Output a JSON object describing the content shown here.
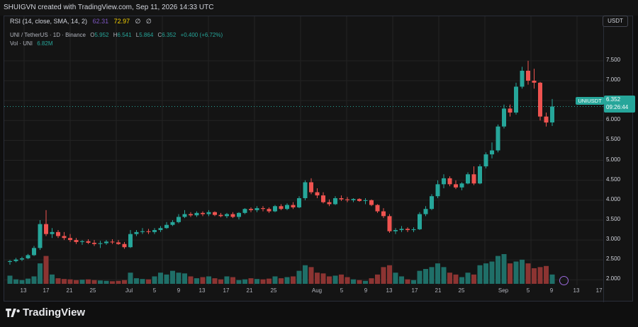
{
  "header": {
    "creator_line": "SHUIGVN created with TradingView.com, Sep 11, 2026 14:33 UTC"
  },
  "rsi": {
    "label": "RSI (14, close, SMA, 14, 2)",
    "value1": "62.31",
    "value2": "72.97",
    "na1": "∅",
    "na2": "∅"
  },
  "symbol_legend": {
    "title": "UNI / TetherUS · 1D · Binance",
    "o_label": "O",
    "open": "5.952",
    "h_label": "H",
    "high": "6.541",
    "l_label": "L",
    "low": "5.864",
    "c_label": "C",
    "close": "6.352",
    "change": "+0.400 (+6.72%)"
  },
  "volume_legend": {
    "label": "Vol · UNI",
    "value": "6.82M"
  },
  "price_axis": {
    "currency_button": "USDT",
    "ticks": [
      "7.500",
      "7.000",
      "6.500",
      "6.000",
      "5.500",
      "5.000",
      "4.500",
      "4.000",
      "3.500",
      "3.000",
      "2.500",
      "2.000"
    ],
    "last_price_symbol": "UNIUSDT",
    "last_price": "6.352",
    "countdown": "09:26:44"
  },
  "date_axis": {
    "labels": [
      "13",
      "17",
      "21",
      "25",
      "Jul",
      "5",
      "9",
      "13",
      "17",
      "21",
      "25",
      "Aug",
      "5",
      "9",
      "13",
      "17",
      "21",
      "25",
      "Sep",
      "5",
      "9",
      "13",
      "17"
    ]
  },
  "brand": {
    "logo_text": "TradingView"
  },
  "colors": {
    "up": "#26a69a",
    "down": "#ef5350",
    "vol_up": "#1f6f68",
    "vol_down": "#8c3432",
    "grid": "#232323"
  },
  "chart_data": {
    "type": "candlestick",
    "y_range": [
      1.9,
      7.8
    ],
    "candles": [
      {
        "date": "Jun 11",
        "o": 2.45,
        "h": 2.5,
        "l": 2.38,
        "c": 2.47,
        "v": 0.22
      },
      {
        "date": "Jun 12",
        "o": 2.47,
        "h": 2.55,
        "l": 2.44,
        "c": 2.51,
        "v": 0.12
      },
      {
        "date": "Jun 13",
        "o": 2.51,
        "h": 2.58,
        "l": 2.47,
        "c": 2.54,
        "v": 0.1
      },
      {
        "date": "Jun 14",
        "o": 2.54,
        "h": 2.65,
        "l": 2.52,
        "c": 2.62,
        "v": 0.14
      },
      {
        "date": "Jun 15",
        "o": 2.62,
        "h": 2.85,
        "l": 2.6,
        "c": 2.8,
        "v": 0.2
      },
      {
        "date": "Jun 16",
        "o": 2.8,
        "h": 3.5,
        "l": 2.75,
        "c": 3.4,
        "v": 0.55
      },
      {
        "date": "Jun 17",
        "o": 3.4,
        "h": 3.75,
        "l": 3.1,
        "c": 3.15,
        "v": 0.75
      },
      {
        "date": "Jun 18",
        "o": 3.15,
        "h": 3.3,
        "l": 3.05,
        "c": 3.2,
        "v": 0.25
      },
      {
        "date": "Jun 19",
        "o": 3.2,
        "h": 3.25,
        "l": 3.05,
        "c": 3.1,
        "v": 0.15
      },
      {
        "date": "Jun 20",
        "o": 3.1,
        "h": 3.2,
        "l": 3.0,
        "c": 3.05,
        "v": 0.13
      },
      {
        "date": "Jun 21",
        "o": 3.05,
        "h": 3.15,
        "l": 2.95,
        "c": 3.0,
        "v": 0.12
      },
      {
        "date": "Jun 22",
        "o": 3.0,
        "h": 3.05,
        "l": 2.9,
        "c": 2.95,
        "v": 0.1
      },
      {
        "date": "Jun 23",
        "o": 2.95,
        "h": 3.0,
        "l": 2.88,
        "c": 2.97,
        "v": 0.11
      },
      {
        "date": "Jun 24",
        "o": 2.97,
        "h": 3.02,
        "l": 2.9,
        "c": 2.93,
        "v": 0.12
      },
      {
        "date": "Jun 25",
        "o": 2.93,
        "h": 3.0,
        "l": 2.85,
        "c": 2.9,
        "v": 0.1
      },
      {
        "date": "Jun 26",
        "o": 2.9,
        "h": 2.98,
        "l": 2.8,
        "c": 2.92,
        "v": 0.09
      },
      {
        "date": "Jun 27",
        "o": 2.92,
        "h": 3.0,
        "l": 2.88,
        "c": 2.96,
        "v": 0.08
      },
      {
        "date": "Jun 28",
        "o": 2.96,
        "h": 3.02,
        "l": 2.9,
        "c": 2.94,
        "v": 0.07
      },
      {
        "date": "Jun 29",
        "o": 2.94,
        "h": 3.0,
        "l": 2.88,
        "c": 2.9,
        "v": 0.08
      },
      {
        "date": "Jun 30",
        "o": 2.9,
        "h": 2.95,
        "l": 2.78,
        "c": 2.82,
        "v": 0.1
      },
      {
        "date": "Jul 1",
        "o": 2.82,
        "h": 3.25,
        "l": 2.8,
        "c": 3.15,
        "v": 0.3
      },
      {
        "date": "Jul 2",
        "o": 3.15,
        "h": 3.25,
        "l": 3.1,
        "c": 3.2,
        "v": 0.15
      },
      {
        "date": "Jul 3",
        "o": 3.2,
        "h": 3.3,
        "l": 3.15,
        "c": 3.22,
        "v": 0.13
      },
      {
        "date": "Jul 4",
        "o": 3.22,
        "h": 3.28,
        "l": 3.15,
        "c": 3.2,
        "v": 0.12
      },
      {
        "date": "Jul 5",
        "o": 3.2,
        "h": 3.3,
        "l": 3.15,
        "c": 3.25,
        "v": 0.2
      },
      {
        "date": "Jul 6",
        "o": 3.25,
        "h": 3.35,
        "l": 3.2,
        "c": 3.3,
        "v": 0.3
      },
      {
        "date": "Jul 7",
        "o": 3.3,
        "h": 3.45,
        "l": 3.28,
        "c": 3.38,
        "v": 0.25
      },
      {
        "date": "Jul 8",
        "o": 3.38,
        "h": 3.5,
        "l": 3.35,
        "c": 3.45,
        "v": 0.35
      },
      {
        "date": "Jul 9",
        "o": 3.45,
        "h": 3.65,
        "l": 3.42,
        "c": 3.58,
        "v": 0.3
      },
      {
        "date": "Jul 10",
        "o": 3.58,
        "h": 3.75,
        "l": 3.55,
        "c": 3.65,
        "v": 0.28
      },
      {
        "date": "Jul 11",
        "o": 3.65,
        "h": 3.7,
        "l": 3.58,
        "c": 3.62,
        "v": 0.2
      },
      {
        "date": "Jul 12",
        "o": 3.62,
        "h": 3.72,
        "l": 3.58,
        "c": 3.68,
        "v": 0.15
      },
      {
        "date": "Jul 13",
        "o": 3.68,
        "h": 3.72,
        "l": 3.6,
        "c": 3.65,
        "v": 0.18
      },
      {
        "date": "Jul 14",
        "o": 3.65,
        "h": 3.75,
        "l": 3.6,
        "c": 3.7,
        "v": 0.2
      },
      {
        "date": "Jul 15",
        "o": 3.7,
        "h": 3.72,
        "l": 3.6,
        "c": 3.63,
        "v": 0.15
      },
      {
        "date": "Jul 16",
        "o": 3.63,
        "h": 3.68,
        "l": 3.57,
        "c": 3.6,
        "v": 0.12
      },
      {
        "date": "Jul 17",
        "o": 3.6,
        "h": 3.68,
        "l": 3.55,
        "c": 3.65,
        "v": 0.2
      },
      {
        "date": "Jul 18",
        "o": 3.65,
        "h": 3.7,
        "l": 3.55,
        "c": 3.58,
        "v": 0.18
      },
      {
        "date": "Jul 19",
        "o": 3.58,
        "h": 3.7,
        "l": 3.52,
        "c": 3.68,
        "v": 0.1
      },
      {
        "date": "Jul 20",
        "o": 3.68,
        "h": 3.8,
        "l": 3.65,
        "c": 3.78,
        "v": 0.12
      },
      {
        "date": "Jul 21",
        "o": 3.78,
        "h": 3.82,
        "l": 3.7,
        "c": 3.75,
        "v": 0.15
      },
      {
        "date": "Jul 22",
        "o": 3.75,
        "h": 3.85,
        "l": 3.7,
        "c": 3.8,
        "v": 0.13
      },
      {
        "date": "Jul 23",
        "o": 3.8,
        "h": 3.85,
        "l": 3.72,
        "c": 3.78,
        "v": 0.12
      },
      {
        "date": "Jul 24",
        "o": 3.78,
        "h": 3.82,
        "l": 3.68,
        "c": 3.72,
        "v": 0.14
      },
      {
        "date": "Jul 25",
        "o": 3.72,
        "h": 3.88,
        "l": 3.7,
        "c": 3.85,
        "v": 0.2
      },
      {
        "date": "Jul 26",
        "o": 3.85,
        "h": 3.9,
        "l": 3.75,
        "c": 3.78,
        "v": 0.15
      },
      {
        "date": "Jul 27",
        "o": 3.78,
        "h": 3.92,
        "l": 3.75,
        "c": 3.88,
        "v": 0.18
      },
      {
        "date": "Jul 28",
        "o": 3.88,
        "h": 3.95,
        "l": 3.78,
        "c": 3.82,
        "v": 0.2
      },
      {
        "date": "Jul 29",
        "o": 3.82,
        "h": 4.1,
        "l": 3.8,
        "c": 4.05,
        "v": 0.35
      },
      {
        "date": "Jul 30",
        "o": 4.05,
        "h": 4.5,
        "l": 4.0,
        "c": 4.45,
        "v": 0.5
      },
      {
        "date": "Jul 31",
        "o": 4.45,
        "h": 4.55,
        "l": 4.15,
        "c": 4.2,
        "v": 0.45
      },
      {
        "date": "Aug 1",
        "o": 4.2,
        "h": 4.3,
        "l": 4.05,
        "c": 4.12,
        "v": 0.3
      },
      {
        "date": "Aug 2",
        "o": 4.12,
        "h": 4.2,
        "l": 3.92,
        "c": 3.95,
        "v": 0.28
      },
      {
        "date": "Aug 3",
        "o": 3.95,
        "h": 4.02,
        "l": 3.85,
        "c": 3.9,
        "v": 0.2
      },
      {
        "date": "Aug 4",
        "o": 3.9,
        "h": 4.1,
        "l": 3.88,
        "c": 4.05,
        "v": 0.22
      },
      {
        "date": "Aug 5",
        "o": 4.05,
        "h": 4.12,
        "l": 3.98,
        "c": 4.02,
        "v": 0.25
      },
      {
        "date": "Aug 6",
        "o": 4.02,
        "h": 4.08,
        "l": 3.95,
        "c": 4.0,
        "v": 0.18
      },
      {
        "date": "Aug 7",
        "o": 4.0,
        "h": 4.05,
        "l": 3.95,
        "c": 4.03,
        "v": 0.12
      },
      {
        "date": "Aug 8",
        "o": 4.03,
        "h": 4.05,
        "l": 3.96,
        "c": 3.98,
        "v": 0.1
      },
      {
        "date": "Aug 9",
        "o": 3.98,
        "h": 4.05,
        "l": 3.9,
        "c": 4.0,
        "v": 0.08
      },
      {
        "date": "Aug 10",
        "o": 4.0,
        "h": 4.02,
        "l": 3.85,
        "c": 3.88,
        "v": 0.15
      },
      {
        "date": "Aug 11",
        "o": 3.88,
        "h": 3.9,
        "l": 3.68,
        "c": 3.72,
        "v": 0.25
      },
      {
        "date": "Aug 12",
        "o": 3.72,
        "h": 3.8,
        "l": 3.55,
        "c": 3.6,
        "v": 0.45
      },
      {
        "date": "Aug 13",
        "o": 3.6,
        "h": 3.65,
        "l": 3.18,
        "c": 3.22,
        "v": 0.5
      },
      {
        "date": "Aug 14",
        "o": 3.22,
        "h": 3.3,
        "l": 3.15,
        "c": 3.25,
        "v": 0.3
      },
      {
        "date": "Aug 15",
        "o": 3.25,
        "h": 3.35,
        "l": 3.2,
        "c": 3.28,
        "v": 0.2
      },
      {
        "date": "Aug 16",
        "o": 3.28,
        "h": 3.32,
        "l": 3.2,
        "c": 3.25,
        "v": 0.12
      },
      {
        "date": "Aug 17",
        "o": 3.25,
        "h": 3.32,
        "l": 3.2,
        "c": 3.27,
        "v": 0.1
      },
      {
        "date": "Aug 18",
        "o": 3.27,
        "h": 3.7,
        "l": 3.25,
        "c": 3.65,
        "v": 0.35
      },
      {
        "date": "Aug 19",
        "o": 3.65,
        "h": 3.85,
        "l": 3.6,
        "c": 3.78,
        "v": 0.4
      },
      {
        "date": "Aug 20",
        "o": 3.78,
        "h": 4.15,
        "l": 3.75,
        "c": 4.1,
        "v": 0.45
      },
      {
        "date": "Aug 21",
        "o": 4.1,
        "h": 4.5,
        "l": 4.05,
        "c": 4.4,
        "v": 0.55
      },
      {
        "date": "Aug 22",
        "o": 4.4,
        "h": 4.65,
        "l": 4.3,
        "c": 4.55,
        "v": 0.45
      },
      {
        "date": "Aug 23",
        "o": 4.55,
        "h": 4.6,
        "l": 4.35,
        "c": 4.4,
        "v": 0.3
      },
      {
        "date": "Aug 24",
        "o": 4.4,
        "h": 4.5,
        "l": 4.28,
        "c": 4.32,
        "v": 0.25
      },
      {
        "date": "Aug 25",
        "o": 4.32,
        "h": 4.45,
        "l": 4.25,
        "c": 4.42,
        "v": 0.18
      },
      {
        "date": "Aug 26",
        "o": 4.42,
        "h": 4.7,
        "l": 4.4,
        "c": 4.65,
        "v": 0.3
      },
      {
        "date": "Aug 27",
        "o": 4.65,
        "h": 4.85,
        "l": 4.38,
        "c": 4.42,
        "v": 0.25
      },
      {
        "date": "Aug 28",
        "o": 4.42,
        "h": 4.9,
        "l": 4.4,
        "c": 4.85,
        "v": 0.5
      },
      {
        "date": "Aug 29",
        "o": 4.85,
        "h": 5.2,
        "l": 4.8,
        "c": 5.15,
        "v": 0.55
      },
      {
        "date": "Aug 30",
        "o": 5.15,
        "h": 5.45,
        "l": 5.05,
        "c": 5.25,
        "v": 0.6
      },
      {
        "date": "Aug 31",
        "o": 5.25,
        "h": 5.9,
        "l": 5.2,
        "c": 5.85,
        "v": 0.75
      },
      {
        "date": "Sep 1",
        "o": 5.85,
        "h": 6.4,
        "l": 5.8,
        "c": 6.3,
        "v": 0.8
      },
      {
        "date": "Sep 2",
        "o": 6.3,
        "h": 6.4,
        "l": 6.1,
        "c": 6.2,
        "v": 0.55
      },
      {
        "date": "Sep 3",
        "o": 6.2,
        "h": 6.95,
        "l": 6.15,
        "c": 6.85,
        "v": 0.6
      },
      {
        "date": "Sep 4",
        "o": 6.85,
        "h": 7.35,
        "l": 6.8,
        "c": 7.25,
        "v": 0.65
      },
      {
        "date": "Sep 5",
        "o": 7.25,
        "h": 7.5,
        "l": 6.9,
        "c": 7.0,
        "v": 0.55
      },
      {
        "date": "Sep 6",
        "o": 7.0,
        "h": 7.3,
        "l": 6.8,
        "c": 6.95,
        "v": 0.42
      },
      {
        "date": "Sep 7",
        "o": 6.95,
        "h": 6.97,
        "l": 6.0,
        "c": 6.1,
        "v": 0.45
      },
      {
        "date": "Sep 8",
        "o": 6.1,
        "h": 6.2,
        "l": 5.85,
        "c": 5.95,
        "v": 0.48
      },
      {
        "date": "Sep 9",
        "o": 5.952,
        "h": 6.541,
        "l": 5.864,
        "c": 6.352,
        "v": 0.25
      }
    ]
  }
}
